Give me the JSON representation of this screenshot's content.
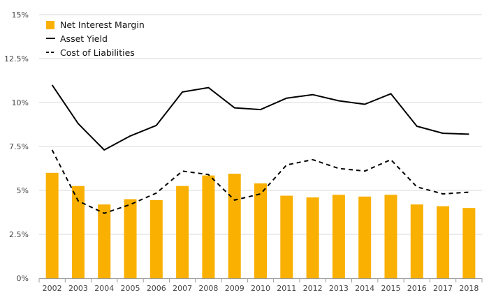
{
  "chart_data": {
    "type": "bar+line",
    "title": "",
    "xlabel": "",
    "ylabel": "",
    "ylim": [
      0,
      15
    ],
    "yticks": [
      "0%",
      "2.5%",
      "5%",
      "7.5%",
      "10%",
      "12.5%",
      "15%"
    ],
    "ytick_values": [
      0,
      2.5,
      5,
      7.5,
      10,
      12.5,
      15
    ],
    "categories": [
      "2002",
      "2003",
      "2004",
      "2005",
      "2006",
      "2007",
      "2008",
      "2009",
      "2010",
      "2011",
      "2012",
      "2013",
      "2014",
      "2015",
      "2016",
      "2017",
      "2018"
    ],
    "series": [
      {
        "name": "Net Interest Margin",
        "kind": "bar",
        "color": "#F9B000",
        "values": [
          6.0,
          5.25,
          4.2,
          4.5,
          4.45,
          5.25,
          5.85,
          5.95,
          5.4,
          4.7,
          4.6,
          4.75,
          4.65,
          4.75,
          4.2,
          4.1,
          4.0
        ]
      },
      {
        "name": "Asset Yield",
        "kind": "line",
        "style": "solid",
        "color": "#000000",
        "values": [
          11.0,
          8.8,
          7.3,
          8.1,
          8.7,
          10.6,
          10.85,
          9.7,
          9.6,
          10.25,
          10.45,
          10.1,
          9.9,
          10.5,
          8.65,
          8.25,
          8.2
        ]
      },
      {
        "name": "Cost of Liabilities",
        "kind": "line",
        "style": "dashed",
        "color": "#000000",
        "values": [
          7.3,
          4.4,
          3.7,
          4.2,
          4.85,
          6.1,
          5.9,
          4.45,
          4.8,
          6.45,
          6.75,
          6.25,
          6.1,
          6.75,
          5.2,
          4.8,
          4.9
        ]
      }
    ],
    "grid": true,
    "legend_position": "top-left"
  }
}
